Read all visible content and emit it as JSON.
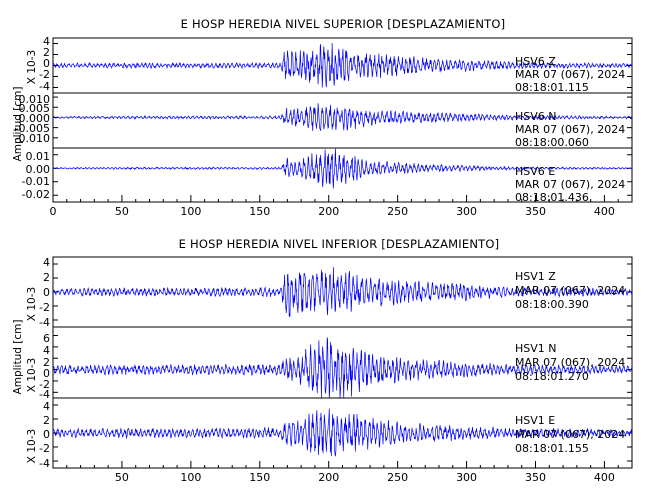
{
  "panels": [
    {
      "title": "E HOSP HEREDIA NIVEL SUPERIOR [DESPLAZAMIENTO]",
      "ylabel": "Amplitud [cm]",
      "traces": [
        {
          "scale_label": "X 10-3",
          "annotation": [
            "HSV6   Z",
            "MAR 07 (067), 2024",
            "08:18:01.115"
          ],
          "yticks": [
            "4",
            "2",
            "0",
            "-2",
            "-4"
          ]
        },
        {
          "scale_label": "",
          "annotation": [
            "HSV6   N",
            "MAR 07 (067), 2024",
            "08:18:00.060"
          ],
          "yticks": [
            "0.010",
            "0.005",
            "0.000",
            "-0.005",
            "-0.010"
          ]
        },
        {
          "scale_label": "",
          "annotation": [
            "HSV6   E",
            "MAR 07 (067), 2024",
            "08:18:01.436"
          ],
          "yticks": [
            "0.01",
            "0.00",
            "-0.01",
            "-0.02"
          ]
        }
      ],
      "xticks": [
        "0",
        "50",
        "100",
        "150",
        "200",
        "250",
        "300",
        "350",
        "400"
      ]
    },
    {
      "title": "E HOSP HEREDIA NIVEL INFERIOR [DESPLAZAMIENTO]",
      "ylabel": "Amplitud [cm]",
      "traces": [
        {
          "scale_label": "X 10-3",
          "annotation": [
            "HSV1   Z",
            "MAR 07 (067), 2024",
            "08:18:00.390"
          ],
          "yticks": [
            "4",
            "2",
            "0",
            "-2",
            "-4"
          ]
        },
        {
          "scale_label": "X 10-3",
          "annotation": [
            "HSV1   N",
            "MAR 07 (067), 2024",
            "08:18:01.270"
          ],
          "yticks": [
            "6",
            "4",
            "2",
            "0",
            "-2",
            "-4"
          ]
        },
        {
          "scale_label": "X 10-3",
          "annotation": [
            "HSV1   E",
            "MAR 07 (067), 2024",
            "08:18:01.155"
          ],
          "yticks": [
            "4",
            "2",
            "0",
            "-2",
            "-4"
          ]
        }
      ],
      "xticks": [
        "50",
        "100",
        "150",
        "200",
        "250",
        "300",
        "350",
        "400"
      ]
    }
  ],
  "chart_data": [
    {
      "type": "line",
      "title": "E HOSP HEREDIA NIVEL SUPERIOR [DESPLAZAMIENTO]",
      "ylabel": "Amplitud [cm]",
      "xlim": [
        0,
        420
      ],
      "line_color": "#0000ff",
      "series": [
        {
          "name": "HSV6   Z",
          "start": "MAR 07 (067), 2024 08:18:01.115",
          "scale": "X 10-3",
          "ylim": [
            -5,
            5
          ],
          "envelope": {
            "x": [
              0,
              60,
              100,
              165,
              170,
              175,
              200,
              230,
              260,
              300,
              340,
              420
            ],
            "amplitude": [
              0.4,
              0.5,
              0.5,
              0.5,
              4.5,
              2.6,
              4.5,
              2.4,
              1.6,
              1.1,
              0.6,
              0.35
            ]
          }
        },
        {
          "name": "HSV6   N",
          "start": "MAR 07 (067), 2024 08:18:00.060",
          "ylim": [
            -0.015,
            0.012
          ],
          "envelope": {
            "x": [
              0,
              60,
              100,
              165,
              170,
              175,
              200,
              230,
              260,
              300,
              340,
              420
            ],
            "amplitude": [
              0.0005,
              0.0007,
              0.0007,
              0.0008,
              0.007,
              0.005,
              0.008,
              0.004,
              0.003,
              0.002,
              0.001,
              0.0006
            ]
          }
        },
        {
          "name": "HSV6   E",
          "start": "MAR 07 (067), 2024 08:18:01.436",
          "ylim": [
            -0.025,
            0.015
          ],
          "envelope": {
            "x": [
              0,
              60,
              100,
              165,
              170,
              175,
              200,
              230,
              260,
              300,
              340,
              420
            ],
            "amplitude": [
              0.0006,
              0.0008,
              0.0008,
              0.001,
              0.008,
              0.006,
              0.016,
              0.006,
              0.004,
              0.002,
              0.001,
              0.0006
            ]
          }
        }
      ]
    },
    {
      "type": "line",
      "title": "E HOSP HEREDIA NIVEL INFERIOR [DESPLAZAMIENTO]",
      "ylabel": "Amplitud [cm]",
      "xlim": [
        0,
        420
      ],
      "line_color": "#0000ff",
      "series": [
        {
          "name": "HSV1   Z",
          "start": "MAR 07 (067), 2024 08:18:00.390",
          "scale": "X 10-3",
          "ylim": [
            -5,
            5
          ],
          "envelope": {
            "x": [
              0,
              60,
              100,
              165,
              170,
              175,
              200,
              230,
              260,
              300,
              340,
              420
            ],
            "amplitude": [
              0.5,
              0.6,
              0.6,
              0.7,
              4.6,
              3.0,
              4.0,
              2.3,
              1.6,
              1.2,
              0.7,
              0.5
            ]
          }
        },
        {
          "name": "HSV1   N",
          "start": "MAR 07 (067), 2024 08:18:01.270",
          "scale": "X 10-3",
          "ylim": [
            -5,
            7.5
          ],
          "envelope": {
            "x": [
              0,
              60,
              100,
              165,
              170,
              175,
              200,
              230,
              260,
              300,
              340,
              420
            ],
            "amplitude": [
              0.8,
              0.9,
              0.9,
              1.0,
              2.5,
              2.2,
              6.5,
              3.0,
              2.0,
              1.3,
              0.9,
              0.6
            ]
          }
        },
        {
          "name": "HSV1   E",
          "start": "MAR 07 (067), 2024 08:18:01.155",
          "scale": "X 10-3",
          "ylim": [
            -5,
            5
          ],
          "envelope": {
            "x": [
              0,
              60,
              100,
              165,
              170,
              175,
              200,
              230,
              260,
              300,
              340,
              420
            ],
            "amplitude": [
              0.6,
              0.7,
              0.7,
              0.8,
              2.0,
              1.8,
              4.2,
              2.2,
              1.5,
              1.0,
              0.7,
              0.5
            ]
          }
        }
      ]
    }
  ]
}
